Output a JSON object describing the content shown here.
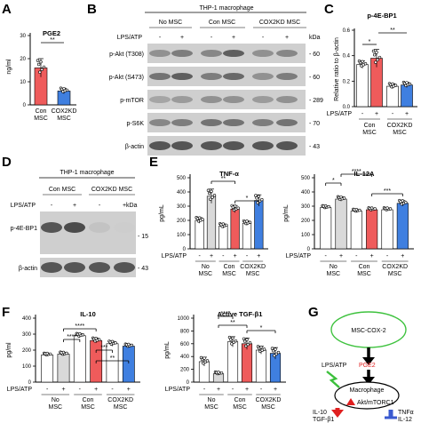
{
  "panels": {
    "A": {
      "letter": "A",
      "title": "PGE2",
      "ylabel": "ng/ml",
      "sig": "**",
      "yticks": [
        "0",
        "10",
        "20",
        "30"
      ],
      "groups": [
        "Con\nMSC",
        "COX2KD\nMSC"
      ],
      "colors": [
        "#ef5b5b",
        "#3f7fe0"
      ]
    },
    "B": {
      "letter": "B",
      "header": "THP-1 macrophage",
      "groups": [
        "No MSC",
        "Con MSC",
        "COX2KD MSC"
      ],
      "treat_label": "LPS/ATP",
      "treat_signs": [
        "-",
        "+",
        "-",
        "+",
        "-",
        "+"
      ],
      "kda_label": "kDa",
      "rows": [
        {
          "label": "p-Akt (T308)",
          "kda": "60"
        },
        {
          "label": "p-Akt (S473)",
          "kda": "60"
        },
        {
          "label": "p-mTOR",
          "kda": "289"
        },
        {
          "label": "p-S6K",
          "kda": "70"
        },
        {
          "label": "β-actin",
          "kda": "43"
        }
      ]
    },
    "C": {
      "letter": "C",
      "title": "p-4E-BP1",
      "ylabel": "Relative ratio to β-actin",
      "treat_label": "LPS/ATP",
      "treat_signs": [
        "-",
        "+",
        "-",
        "+"
      ],
      "groups": [
        "Con\nMSC",
        "COX2KD\nMSC"
      ],
      "sig": [
        "*",
        "**"
      ],
      "yticks": [
        "0.0",
        "0.2",
        "0.4",
        "0.6"
      ]
    },
    "D": {
      "letter": "D",
      "header": "THP-1 macrophage",
      "groups": [
        "Con MSC",
        "COX2KD MSC"
      ],
      "treat_label": "LPS/ATP",
      "treat_signs": [
        "-",
        "+",
        "-",
        "+"
      ],
      "kda_label": "kDa",
      "rows": [
        {
          "label": "p-4E-BP1",
          "kda": "15"
        },
        {
          "label": "β-actin",
          "kda": "43"
        }
      ]
    },
    "E": {
      "letter": "E"
    },
    "F": {
      "letter": "F"
    },
    "G": {
      "letter": "G",
      "msc": "MSC-COX-2",
      "lps": "LPS/ATP",
      "pge2": "PGE2",
      "macrophage": "Macrophage",
      "akt": "Akt/mTORC1",
      "out_left": [
        "IL-10",
        "TGF-β1"
      ],
      "out_right": [
        "TNFα",
        "IL-12"
      ]
    }
  },
  "bar_charts": {
    "tnf": {
      "title": "TNF-α",
      "ylabel": "pg/mL",
      "yticks": [
        "0",
        "100",
        "200",
        "300",
        "400",
        "500"
      ],
      "treat_label": "LPS/ATP",
      "treat_signs": [
        "-",
        "+",
        "-",
        "+",
        "-",
        "+"
      ],
      "groups": [
        "No\nMSC",
        "Con\nMSC",
        "COX2KD\nMSC"
      ],
      "sig": [
        "**",
        "*"
      ]
    },
    "il12": {
      "title": "IL-12A",
      "ylabel": "pg/mL",
      "yticks": [
        "0",
        "100",
        "200",
        "300",
        "400",
        "500"
      ],
      "treat_label": "LPS/ATP",
      "treat_signs": [
        "-",
        "+",
        "-",
        "+",
        "-",
        "+"
      ],
      "groups": [
        "No\nMSC",
        "Con\nMSC",
        "COX2KD\nMSC"
      ],
      "sig": [
        "*",
        "****",
        "***"
      ]
    },
    "il10": {
      "title": "IL-10",
      "ylabel": "pg/ml",
      "yticks": [
        "0",
        "100",
        "200",
        "300",
        "400"
      ],
      "treat_label": "LPS/ATP",
      "treat_signs": [
        "-",
        "+",
        "-",
        "+",
        "-",
        "+"
      ],
      "groups": [
        "No\nMSC",
        "Con\nMSC",
        "COX2KD\nMSC"
      ],
      "sig": [
        "****",
        "****",
        "***",
        "**"
      ]
    },
    "tgf": {
      "title": "Active TGF-β1",
      "ylabel": "pg/mL",
      "yticks": [
        "0",
        "200",
        "400",
        "600",
        "800",
        "1000"
      ],
      "treat_label": "LPS/ATP",
      "treat_signs": [
        "-",
        "+",
        "-",
        "+",
        "-",
        "+"
      ],
      "groups": [
        "No\nMSC",
        "Con\nMSC",
        "COX2KD\nMSC"
      ],
      "sig": [
        "****",
        "**",
        "*"
      ]
    }
  },
  "chart_data": [
    {
      "type": "bar",
      "id": "A",
      "title": "PGE2",
      "ylabel": "ng/ml",
      "categories": [
        "Con MSC",
        "COX2KD MSC"
      ],
      "values": [
        16,
        6
      ],
      "errors": [
        4,
        1.2
      ],
      "ylim": [
        0,
        30
      ],
      "colors": [
        "#ef5b5b",
        "#3f7fe0"
      ]
    },
    {
      "type": "bar",
      "id": "C",
      "title": "p-4E-BP1",
      "ylabel": "Relative ratio to β-actin",
      "categories": [
        "Con MSC -",
        "Con MSC +",
        "COX2KD MSC -",
        "COX2KD MSC +"
      ],
      "values": [
        0.33,
        0.38,
        0.16,
        0.17
      ],
      "errors": [
        0.03,
        0.07,
        0.02,
        0.02
      ],
      "ylim": [
        0,
        0.6
      ],
      "colors": [
        "#ffffff",
        "#ef5b5b",
        "#ffffff",
        "#3f7fe0"
      ]
    },
    {
      "type": "bar",
      "id": "E1",
      "title": "TNF-α",
      "ylabel": "pg/mL",
      "categories": [
        "No MSC -",
        "No MSC +",
        "Con MSC -",
        "Con MSC +",
        "COX2KD MSC -",
        "COX2KD MSC +"
      ],
      "values": [
        200,
        370,
        160,
        280,
        180,
        340
      ],
      "errors": [
        20,
        50,
        15,
        25,
        15,
        40
      ],
      "ylim": [
        0,
        500
      ],
      "colors": [
        "#ffffff",
        "#d9d9d9",
        "#ffffff",
        "#ef5b5b",
        "#ffffff",
        "#3f7fe0"
      ]
    },
    {
      "type": "bar",
      "id": "E2",
      "title": "IL-12A",
      "ylabel": "pg/mL",
      "categories": [
        "No MSC -",
        "No MSC +",
        "Con MSC -",
        "Con MSC +",
        "COX2KD MSC -",
        "COX2KD MSC +"
      ],
      "values": [
        290,
        350,
        265,
        275,
        275,
        320
      ],
      "errors": [
        10,
        15,
        10,
        10,
        10,
        20
      ],
      "ylim": [
        0,
        500
      ],
      "colors": [
        "#ffffff",
        "#d9d9d9",
        "#ffffff",
        "#ef5b5b",
        "#ffffff",
        "#3f7fe0"
      ]
    },
    {
      "type": "bar",
      "id": "F1",
      "title": "IL-10",
      "ylabel": "pg/ml",
      "categories": [
        "No MSC -",
        "No MSC +",
        "Con MSC -",
        "Con MSC +",
        "COX2KD MSC -",
        "COX2KD MSC +"
      ],
      "values": [
        170,
        175,
        290,
        260,
        240,
        225
      ],
      "errors": [
        8,
        10,
        12,
        15,
        15,
        10
      ],
      "ylim": [
        0,
        400
      ],
      "colors": [
        "#ffffff",
        "#d9d9d9",
        "#ffffff",
        "#ef5b5b",
        "#ffffff",
        "#3f7fe0"
      ]
    },
    {
      "type": "bar",
      "id": "F2",
      "title": "Active TGF-β1",
      "ylabel": "pg/mL",
      "categories": [
        "No MSC -",
        "No MSC +",
        "Con MSC -",
        "Con MSC +",
        "COX2KD MSC -",
        "COX2KD MSC +"
      ],
      "values": [
        320,
        130,
        630,
        600,
        500,
        450
      ],
      "errors": [
        70,
        20,
        80,
        90,
        60,
        90
      ],
      "ylim": [
        0,
        1000
      ],
      "colors": [
        "#ffffff",
        "#d9d9d9",
        "#ffffff",
        "#ef5b5b",
        "#ffffff",
        "#3f7fe0"
      ]
    }
  ]
}
